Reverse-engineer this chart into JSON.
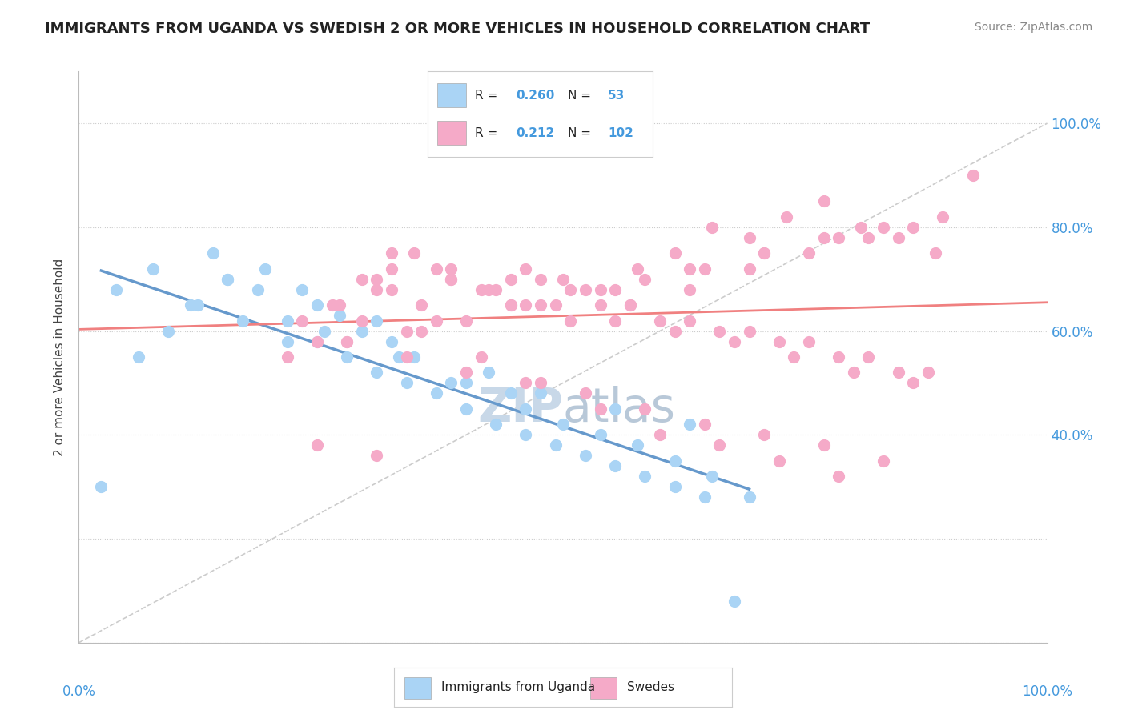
{
  "title": "IMMIGRANTS FROM UGANDA VS SWEDISH 2 OR MORE VEHICLES IN HOUSEHOLD CORRELATION CHART",
  "source": "Source: ZipAtlas.com",
  "ylabel": "2 or more Vehicles in Household",
  "r_uganda": 0.26,
  "n_uganda": 53,
  "r_swedes": 0.212,
  "n_swedes": 102,
  "color_uganda": "#aad4f5",
  "color_swedes": "#f5aac8",
  "trendline_uganda": "#6699cc",
  "trendline_swedes": "#f08080",
  "watermark_color": "#c8d8e8",
  "background_color": "#ffffff",
  "uganda_x": [
    0.3,
    1.5,
    2.0,
    2.5,
    3.0,
    3.2,
    3.5,
    3.8,
    4.0,
    4.2,
    4.5,
    5.0,
    5.5,
    5.8,
    6.0,
    6.5,
    7.0,
    7.5,
    8.0,
    8.5,
    9.0,
    0.5,
    1.0,
    1.8,
    2.2,
    2.8,
    3.3,
    4.3,
    5.2,
    6.2,
    7.2,
    8.2,
    0.8,
    1.2,
    1.6,
    2.0,
    2.4,
    2.8,
    3.2,
    3.6,
    4.0,
    4.4,
    4.8,
    5.2,
    5.6,
    6.0,
    6.4,
    6.8,
    7.2,
    7.6,
    8.0,
    8.4,
    8.8
  ],
  "uganda_y": [
    30,
    65,
    70,
    72,
    68,
    65,
    63,
    60,
    62,
    58,
    55,
    50,
    52,
    48,
    45,
    42,
    40,
    38,
    35,
    32,
    28,
    68,
    72,
    75,
    62,
    58,
    60,
    55,
    50,
    48,
    45,
    42,
    55,
    60,
    65,
    70,
    68,
    62,
    58,
    55,
    52,
    50,
    48,
    45,
    42,
    40,
    38,
    36,
    34,
    32,
    30,
    28,
    8
  ],
  "swedes_x": [
    3.5,
    3.8,
    4.0,
    4.2,
    4.5,
    5.0,
    5.5,
    5.8,
    6.0,
    6.5,
    7.0,
    7.5,
    8.0,
    8.5,
    9.0,
    9.5,
    10.0,
    10.5,
    11.0,
    11.5,
    12.0,
    3.0,
    3.2,
    4.8,
    6.2,
    7.2,
    8.2,
    9.2,
    10.2,
    11.2,
    2.8,
    3.6,
    4.4,
    5.2,
    6.0,
    6.8,
    7.6,
    8.4,
    9.2,
    10.0,
    10.8,
    11.6,
    4.6,
    5.4,
    6.2,
    7.0,
    7.8,
    8.6,
    9.4,
    10.2,
    3.4,
    4.2,
    5.0,
    5.8,
    6.6,
    7.4,
    8.2,
    9.0,
    9.8,
    10.6,
    4.0,
    4.8,
    5.6,
    6.4,
    7.2,
    8.0,
    8.8,
    9.6,
    10.4,
    11.2,
    3.8,
    4.6,
    5.4,
    6.2,
    7.0,
    7.8,
    8.6,
    9.4,
    10.2,
    11.0,
    4.2,
    5.0,
    5.8,
    6.6,
    7.4,
    8.2,
    9.0,
    9.8,
    10.6,
    11.4,
    3.6,
    4.4,
    5.2,
    6.0,
    6.8,
    7.6,
    8.4,
    9.2,
    10.0,
    10.8,
    3.2,
    4.0
  ],
  "swedes_y": [
    65,
    70,
    68,
    72,
    75,
    70,
    68,
    65,
    72,
    70,
    68,
    72,
    75,
    80,
    78,
    82,
    85,
    80,
    78,
    75,
    90,
    62,
    58,
    62,
    65,
    68,
    72,
    75,
    78,
    80,
    55,
    58,
    60,
    62,
    65,
    68,
    70,
    72,
    75,
    78,
    80,
    82,
    60,
    55,
    50,
    45,
    40,
    38,
    35,
    32,
    65,
    68,
    70,
    65,
    62,
    65,
    68,
    72,
    75,
    78,
    70,
    72,
    68,
    65,
    62,
    60,
    58,
    55,
    52,
    50,
    62,
    65,
    68,
    70,
    65,
    62,
    60,
    58,
    55,
    52,
    75,
    72,
    70,
    68,
    65,
    62,
    60,
    58,
    55,
    52,
    58,
    55,
    52,
    50,
    48,
    45,
    42,
    40,
    38,
    35,
    38,
    36
  ]
}
